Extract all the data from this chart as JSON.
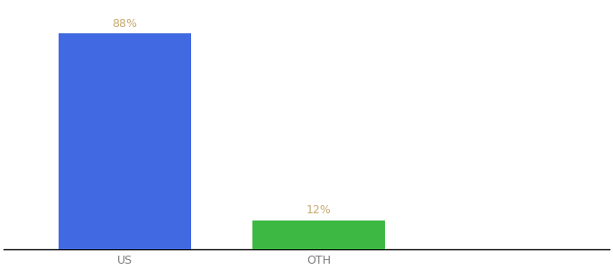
{
  "categories": [
    "US",
    "OTH"
  ],
  "values": [
    88,
    12
  ],
  "bar_colors": [
    "#4169E1",
    "#3CB843"
  ],
  "label_color": "#c8a96e",
  "label_fontsize": 9,
  "xlabel_fontsize": 9,
  "background_color": "#ffffff",
  "bar_width": 0.55,
  "ylim": [
    0,
    100
  ],
  "x_positions": [
    0,
    0.8
  ],
  "xlim": [
    -0.5,
    2.0
  ]
}
